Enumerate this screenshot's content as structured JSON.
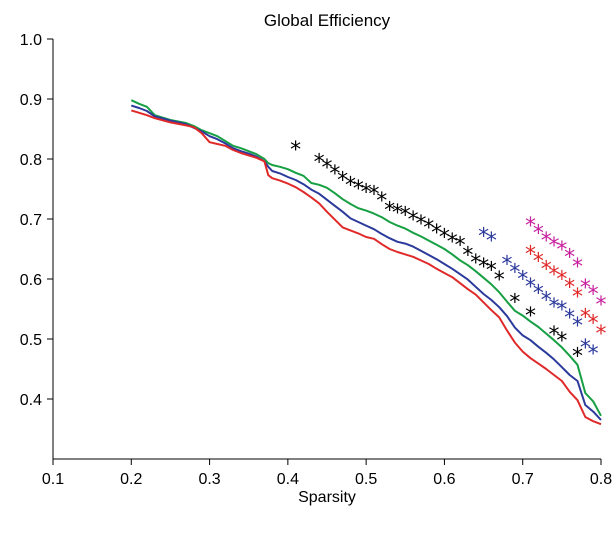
{
  "chart_data": {
    "type": "line",
    "title": "Global Efficiency",
    "xlabel": "Sparsity",
    "ylabel": "",
    "xlim": [
      0.1,
      0.8
    ],
    "ylim": [
      0.3,
      1.0
    ],
    "xticks": [
      "0.1",
      "0.2",
      "0.3",
      "0.4",
      "0.5",
      "0.6",
      "0.7",
      "0.8"
    ],
    "yticks": [
      "0.4",
      "0.5",
      "0.6",
      "0.7",
      "0.8",
      "0.9",
      "1.0"
    ],
    "grid": false,
    "legend": "none",
    "series": [
      {
        "color": "#17a043",
        "x": [
          0.2,
          0.21,
          0.22,
          0.23,
          0.25,
          0.27,
          0.28,
          0.29,
          0.3,
          0.31,
          0.32,
          0.33,
          0.34,
          0.35,
          0.36,
          0.37,
          0.375,
          0.38,
          0.39,
          0.4,
          0.41,
          0.42,
          0.43,
          0.44,
          0.45,
          0.46,
          0.47,
          0.48,
          0.49,
          0.5,
          0.51,
          0.52,
          0.53,
          0.54,
          0.55,
          0.56,
          0.57,
          0.58,
          0.59,
          0.6,
          0.61,
          0.62,
          0.63,
          0.64,
          0.65,
          0.66,
          0.67,
          0.68,
          0.69,
          0.7,
          0.71,
          0.72,
          0.73,
          0.74,
          0.75,
          0.76,
          0.77,
          0.78,
          0.79,
          0.8
        ],
        "y": [
          0.898,
          0.892,
          0.887,
          0.873,
          0.865,
          0.86,
          0.855,
          0.848,
          0.843,
          0.838,
          0.83,
          0.822,
          0.818,
          0.813,
          0.808,
          0.8,
          0.793,
          0.79,
          0.787,
          0.783,
          0.777,
          0.772,
          0.76,
          0.757,
          0.752,
          0.743,
          0.733,
          0.725,
          0.718,
          0.714,
          0.709,
          0.703,
          0.695,
          0.689,
          0.684,
          0.677,
          0.671,
          0.664,
          0.657,
          0.65,
          0.641,
          0.631,
          0.623,
          0.613,
          0.602,
          0.591,
          0.578,
          0.562,
          0.547,
          0.539,
          0.529,
          0.52,
          0.509,
          0.498,
          0.486,
          0.472,
          0.457,
          0.41,
          0.396,
          0.372
        ]
      },
      {
        "color": "#2b3a9b",
        "x": [
          0.2,
          0.21,
          0.22,
          0.23,
          0.25,
          0.27,
          0.28,
          0.29,
          0.3,
          0.31,
          0.32,
          0.33,
          0.34,
          0.35,
          0.36,
          0.37,
          0.375,
          0.38,
          0.39,
          0.4,
          0.41,
          0.42,
          0.43,
          0.44,
          0.45,
          0.46,
          0.47,
          0.48,
          0.49,
          0.5,
          0.51,
          0.52,
          0.53,
          0.54,
          0.55,
          0.56,
          0.57,
          0.58,
          0.59,
          0.6,
          0.61,
          0.62,
          0.63,
          0.64,
          0.65,
          0.66,
          0.67,
          0.68,
          0.69,
          0.7,
          0.71,
          0.72,
          0.73,
          0.74,
          0.75,
          0.76,
          0.77,
          0.78,
          0.79,
          0.8
        ],
        "y": [
          0.889,
          0.885,
          0.88,
          0.871,
          0.864,
          0.858,
          0.852,
          0.846,
          0.838,
          0.833,
          0.826,
          0.818,
          0.813,
          0.809,
          0.804,
          0.796,
          0.787,
          0.78,
          0.776,
          0.77,
          0.765,
          0.758,
          0.749,
          0.742,
          0.732,
          0.722,
          0.712,
          0.701,
          0.695,
          0.689,
          0.683,
          0.675,
          0.668,
          0.662,
          0.659,
          0.654,
          0.647,
          0.64,
          0.633,
          0.625,
          0.617,
          0.608,
          0.599,
          0.587,
          0.575,
          0.565,
          0.553,
          0.538,
          0.519,
          0.506,
          0.498,
          0.487,
          0.477,
          0.466,
          0.453,
          0.44,
          0.43,
          0.39,
          0.379,
          0.365
        ]
      },
      {
        "color": "#e02a2a",
        "x": [
          0.2,
          0.21,
          0.22,
          0.23,
          0.25,
          0.27,
          0.28,
          0.29,
          0.3,
          0.31,
          0.32,
          0.33,
          0.34,
          0.35,
          0.36,
          0.37,
          0.375,
          0.38,
          0.39,
          0.4,
          0.41,
          0.42,
          0.43,
          0.44,
          0.45,
          0.46,
          0.47,
          0.48,
          0.49,
          0.5,
          0.51,
          0.52,
          0.53,
          0.54,
          0.55,
          0.56,
          0.57,
          0.58,
          0.59,
          0.6,
          0.61,
          0.62,
          0.63,
          0.64,
          0.65,
          0.66,
          0.67,
          0.68,
          0.69,
          0.7,
          0.71,
          0.72,
          0.73,
          0.74,
          0.75,
          0.76,
          0.77,
          0.78,
          0.79,
          0.8
        ],
        "y": [
          0.881,
          0.877,
          0.873,
          0.868,
          0.861,
          0.856,
          0.853,
          0.843,
          0.828,
          0.825,
          0.822,
          0.815,
          0.81,
          0.806,
          0.802,
          0.796,
          0.773,
          0.768,
          0.764,
          0.759,
          0.753,
          0.745,
          0.736,
          0.726,
          0.712,
          0.699,
          0.686,
          0.681,
          0.676,
          0.67,
          0.667,
          0.658,
          0.65,
          0.645,
          0.641,
          0.637,
          0.631,
          0.625,
          0.617,
          0.61,
          0.603,
          0.593,
          0.583,
          0.574,
          0.561,
          0.548,
          0.536,
          0.514,
          0.494,
          0.479,
          0.468,
          0.459,
          0.45,
          0.44,
          0.43,
          0.412,
          0.398,
          0.37,
          0.363,
          0.358
        ]
      }
    ],
    "markers": [
      {
        "color": "#000000",
        "symbol": "*",
        "x": [
          0.41,
          0.44,
          0.45,
          0.46,
          0.47,
          0.48,
          0.49,
          0.5,
          0.51,
          0.52,
          0.53,
          0.54,
          0.55,
          0.56,
          0.57,
          0.58,
          0.59,
          0.6,
          0.61,
          0.62,
          0.63,
          0.64,
          0.65,
          0.66,
          0.67,
          0.69,
          0.71,
          0.74,
          0.75,
          0.77
        ],
        "y": [
          0.82,
          0.799,
          0.79,
          0.78,
          0.769,
          0.761,
          0.755,
          0.749,
          0.746,
          0.735,
          0.719,
          0.715,
          0.711,
          0.703,
          0.697,
          0.69,
          0.682,
          0.674,
          0.667,
          0.661,
          0.644,
          0.632,
          0.625,
          0.619,
          0.603,
          0.566,
          0.543,
          0.512,
          0.502,
          0.476
        ]
      },
      {
        "color": "#2b3a9b",
        "symbol": "*",
        "x": [
          0.65,
          0.66,
          0.68,
          0.69,
          0.7,
          0.71,
          0.72,
          0.73,
          0.74,
          0.75,
          0.76,
          0.77,
          0.78,
          0.79
        ],
        "y": [
          0.676,
          0.668,
          0.629,
          0.616,
          0.604,
          0.592,
          0.581,
          0.569,
          0.558,
          0.553,
          0.54,
          0.527,
          0.49,
          0.48
        ]
      },
      {
        "color": "#e02a2a",
        "symbol": "*",
        "x": [
          0.71,
          0.72,
          0.73,
          0.74,
          0.75,
          0.76,
          0.77,
          0.78,
          0.79,
          0.8
        ],
        "y": [
          0.646,
          0.634,
          0.621,
          0.612,
          0.604,
          0.591,
          0.575,
          0.541,
          0.531,
          0.513
        ]
      },
      {
        "color": "#c8219f",
        "symbol": "*",
        "x": [
          0.71,
          0.72,
          0.73,
          0.74,
          0.75,
          0.76,
          0.77,
          0.78,
          0.79,
          0.8
        ],
        "y": [
          0.693,
          0.681,
          0.668,
          0.66,
          0.653,
          0.641,
          0.625,
          0.59,
          0.579,
          0.562
        ]
      }
    ]
  }
}
